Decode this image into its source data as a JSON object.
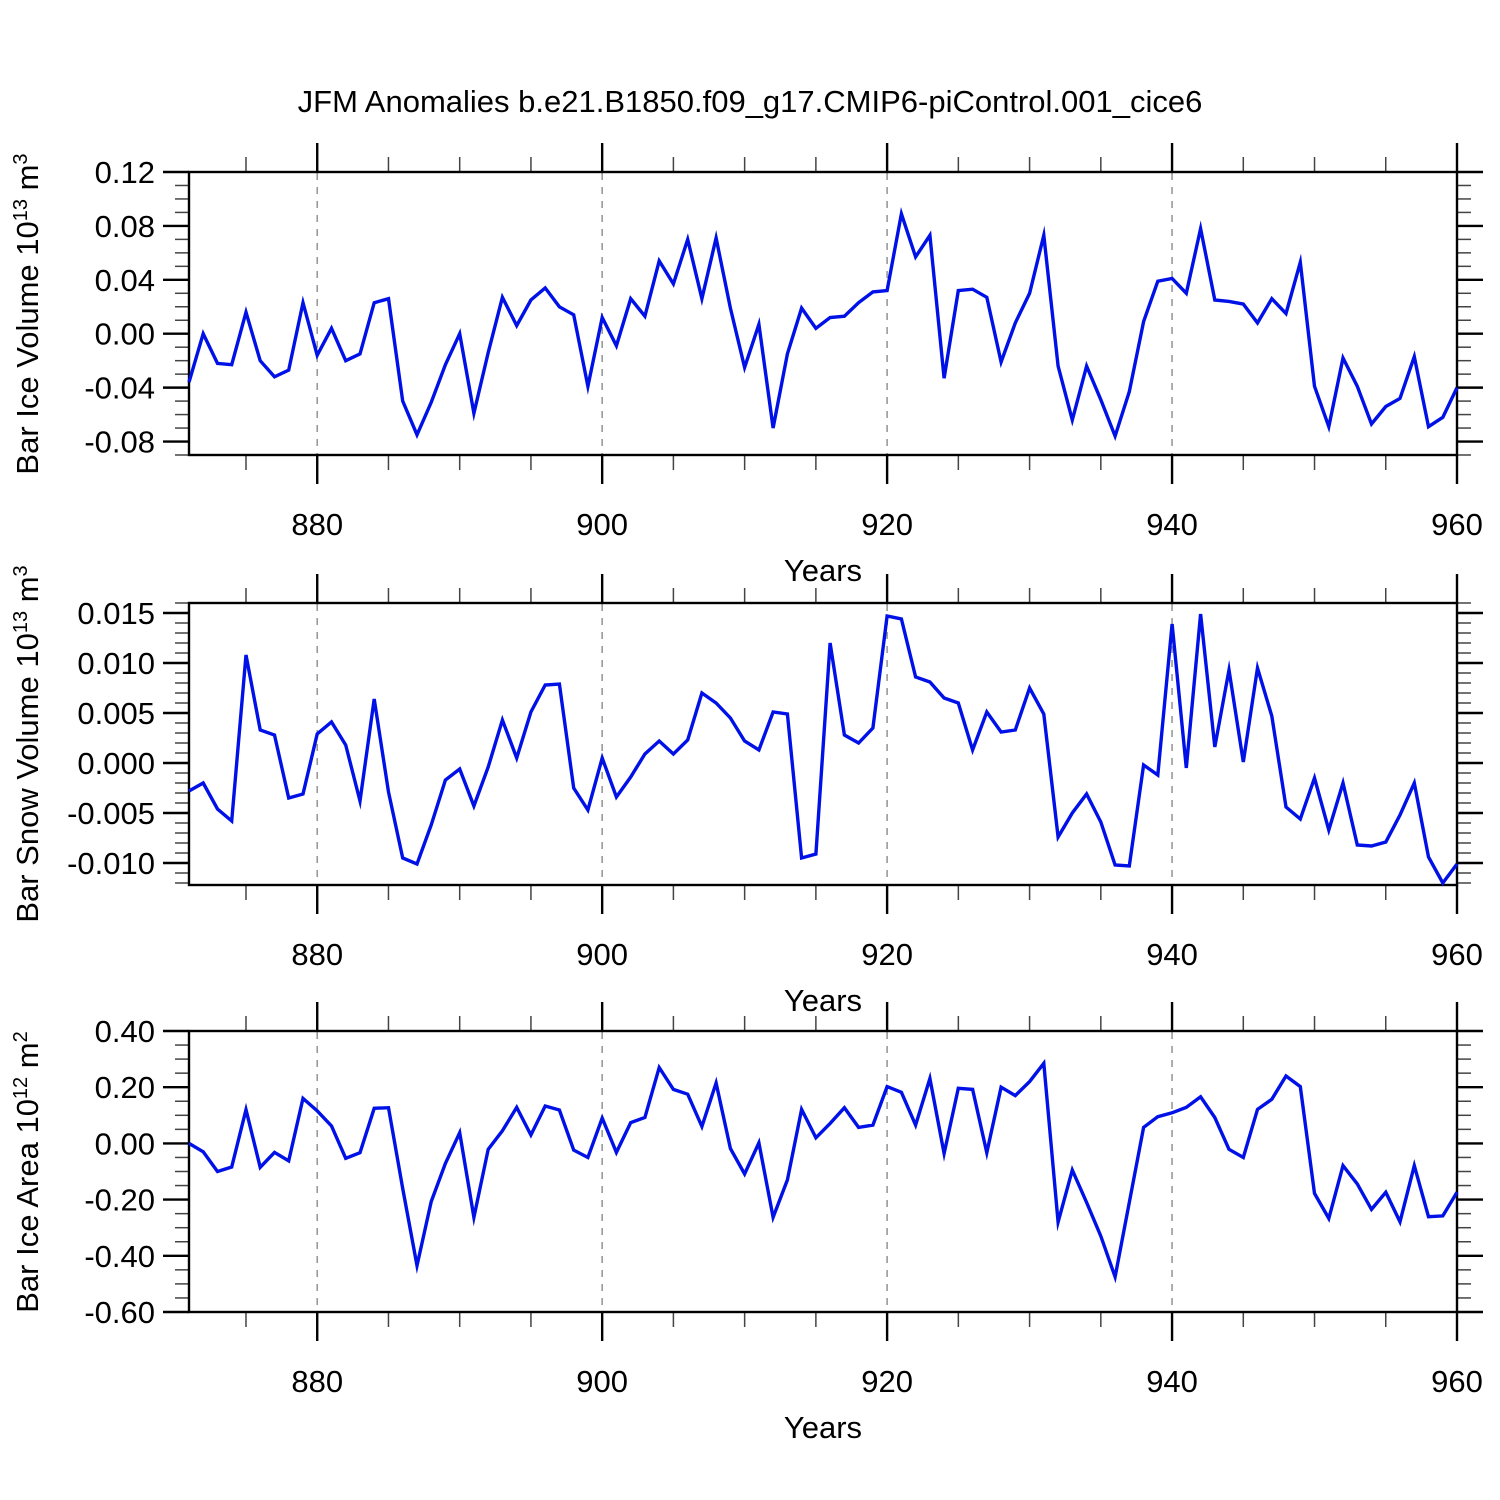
{
  "title": "JFM Anomalies b.e21.B1850.f09_g17.CMIP6-piControl.001_cice6",
  "colors": {
    "series": "#0011E8",
    "axis": "#000000",
    "minor_tick": "#444444",
    "grid": "#999999",
    "background": "#ffffff"
  },
  "chart_data": [
    {
      "type": "line",
      "ylabel": {
        "base": "Bar Ice Volume 10",
        "exp": "13",
        "unit": " m",
        "unit_exp": "3"
      },
      "xlabel": "Years",
      "xlim": [
        871,
        960
      ],
      "ylim": [
        -0.09,
        0.12
      ],
      "xticks": [
        {
          "v": 880,
          "label": "880"
        },
        {
          "v": 900,
          "label": "900"
        },
        {
          "v": 920,
          "label": "920"
        },
        {
          "v": 940,
          "label": "940"
        },
        {
          "v": 960,
          "label": "960"
        }
      ],
      "xtick_minor_step": 5,
      "grid_x": [
        880,
        900,
        920,
        940
      ],
      "yticks": [
        {
          "v": 0.12,
          "label": "0.12"
        },
        {
          "v": 0.08,
          "label": "0.08"
        },
        {
          "v": 0.04,
          "label": "0.04"
        },
        {
          "v": 0.0,
          "label": "0.00"
        },
        {
          "v": -0.04,
          "label": "-0.04"
        },
        {
          "v": -0.08,
          "label": "-0.08"
        }
      ],
      "ytick_minor_step": 0.01,
      "x_start": 871,
      "values": [
        -0.036,
        0.0,
        -0.022,
        -0.023,
        0.016,
        -0.02,
        -0.032,
        -0.027,
        0.023,
        -0.016,
        0.004,
        -0.02,
        -0.015,
        0.023,
        0.026,
        -0.05,
        -0.075,
        -0.051,
        -0.023,
        0.0,
        -0.059,
        -0.014,
        0.027,
        0.006,
        0.025,
        0.034,
        0.02,
        0.014,
        -0.039,
        0.012,
        -0.009,
        0.026,
        0.013,
        0.054,
        0.037,
        0.07,
        0.026,
        0.071,
        0.019,
        -0.025,
        0.007,
        -0.07,
        -0.015,
        0.019,
        0.004,
        0.012,
        0.013,
        0.023,
        0.031,
        0.032,
        0.089,
        0.057,
        0.073,
        -0.033,
        0.032,
        0.033,
        0.027,
        -0.021,
        0.008,
        0.03,
        0.073,
        -0.024,
        -0.064,
        -0.024,
        -0.049,
        -0.076,
        -0.043,
        0.009,
        0.039,
        0.041,
        0.03,
        0.078,
        0.025,
        0.024,
        0.022,
        0.008,
        0.026,
        0.015,
        0.053,
        -0.039,
        -0.069,
        -0.018,
        -0.039,
        -0.067,
        -0.054,
        -0.048,
        -0.017,
        -0.069,
        -0.062,
        -0.04
      ]
    },
    {
      "type": "line",
      "ylabel": {
        "base": "Bar Snow Volume 10",
        "exp": "13",
        "unit": " m",
        "unit_exp": "3"
      },
      "xlabel": "Years",
      "xlim": [
        871,
        960
      ],
      "ylim": [
        -0.0122,
        0.016
      ],
      "xticks": [
        {
          "v": 880,
          "label": "880"
        },
        {
          "v": 900,
          "label": "900"
        },
        {
          "v": 920,
          "label": "920"
        },
        {
          "v": 940,
          "label": "940"
        },
        {
          "v": 960,
          "label": "960"
        }
      ],
      "xtick_minor_step": 5,
      "grid_x": [
        880,
        900,
        920,
        940
      ],
      "yticks": [
        {
          "v": 0.015,
          "label": "0.015"
        },
        {
          "v": 0.01,
          "label": "0.010"
        },
        {
          "v": 0.005,
          "label": "0.005"
        },
        {
          "v": 0.0,
          "label": "0.000"
        },
        {
          "v": -0.005,
          "label": "-0.005"
        },
        {
          "v": -0.01,
          "label": "-0.010"
        }
      ],
      "ytick_minor_step": 0.001,
      "x_start": 871,
      "values": [
        -0.0028,
        -0.002,
        -0.0046,
        -0.0058,
        0.0108,
        0.0033,
        0.0028,
        -0.0035,
        -0.0031,
        0.0029,
        0.0041,
        0.0018,
        -0.0038,
        0.0064,
        -0.0029,
        -0.0095,
        -0.0101,
        -0.0062,
        -0.0017,
        -0.0006,
        -0.0043,
        -0.0004,
        0.0043,
        0.0005,
        0.0051,
        0.0078,
        0.0079,
        -0.0025,
        -0.0047,
        0.0005,
        -0.0034,
        -0.0014,
        0.0009,
        0.0022,
        0.0009,
        0.0023,
        0.007,
        0.006,
        0.0045,
        0.0022,
        0.0013,
        0.0051,
        0.0049,
        -0.0095,
        -0.0091,
        0.012,
        0.0028,
        0.002,
        0.0035,
        0.0147,
        0.0144,
        0.0086,
        0.0081,
        0.0065,
        0.006,
        0.0013,
        0.0051,
        0.0031,
        0.0033,
        0.0075,
        0.0049,
        -0.0074,
        -0.005,
        -0.0031,
        -0.0059,
        -0.0102,
        -0.0103,
        -0.0002,
        -0.0012,
        0.0139,
        -0.0005,
        0.0149,
        0.0016,
        0.0093,
        0.0001,
        0.0095,
        0.0047,
        -0.0044,
        -0.0056,
        -0.0015,
        -0.0067,
        -0.002,
        -0.0082,
        -0.0083,
        -0.0079,
        -0.0052,
        -0.002,
        -0.0094,
        -0.012,
        -0.0101
      ]
    },
    {
      "type": "line",
      "ylabel": {
        "base": "Bar Ice Area 10",
        "exp": "12",
        "unit": " m",
        "unit_exp": "2"
      },
      "xlabel": "Years",
      "xlim": [
        871,
        960
      ],
      "ylim": [
        -0.6,
        0.4
      ],
      "xticks": [
        {
          "v": 880,
          "label": "880"
        },
        {
          "v": 900,
          "label": "900"
        },
        {
          "v": 920,
          "label": "920"
        },
        {
          "v": 940,
          "label": "940"
        },
        {
          "v": 960,
          "label": "960"
        }
      ],
      "xtick_minor_step": 5,
      "grid_x": [
        880,
        900,
        920,
        940
      ],
      "yticks": [
        {
          "v": 0.4,
          "label": "0.40"
        },
        {
          "v": 0.2,
          "label": "0.20"
        },
        {
          "v": 0.0,
          "label": "0.00"
        },
        {
          "v": -0.2,
          "label": "-0.20"
        },
        {
          "v": -0.4,
          "label": "-0.40"
        },
        {
          "v": -0.6,
          "label": "-0.60"
        }
      ],
      "ytick_minor_step": 0.05,
      "x_start": 871,
      "values": [
        0.0,
        -0.03,
        -0.1,
        -0.084,
        0.12,
        -0.085,
        -0.032,
        -0.062,
        0.16,
        0.116,
        0.062,
        -0.053,
        -0.033,
        0.125,
        0.127,
        -0.16,
        -0.435,
        -0.207,
        -0.071,
        0.038,
        -0.263,
        -0.021,
        0.045,
        0.128,
        0.03,
        0.133,
        0.119,
        -0.024,
        -0.05,
        0.09,
        -0.032,
        0.074,
        0.092,
        0.27,
        0.192,
        0.175,
        0.06,
        0.215,
        -0.018,
        -0.109,
        0.002,
        -0.263,
        -0.13,
        0.121,
        0.02,
        0.071,
        0.127,
        0.057,
        0.065,
        0.202,
        0.182,
        0.065,
        0.231,
        -0.036,
        0.196,
        0.192,
        -0.033,
        0.2,
        0.17,
        0.22,
        0.285,
        -0.28,
        -0.095,
        -0.21,
        -0.33,
        -0.475,
        -0.21,
        0.057,
        0.095,
        0.109,
        0.128,
        0.166,
        0.092,
        -0.021,
        -0.05,
        0.121,
        0.157,
        0.24,
        0.202,
        -0.178,
        -0.267,
        -0.079,
        -0.144,
        -0.235,
        -0.174,
        -0.279,
        -0.079,
        -0.261,
        -0.258,
        -0.174
      ]
    }
  ]
}
